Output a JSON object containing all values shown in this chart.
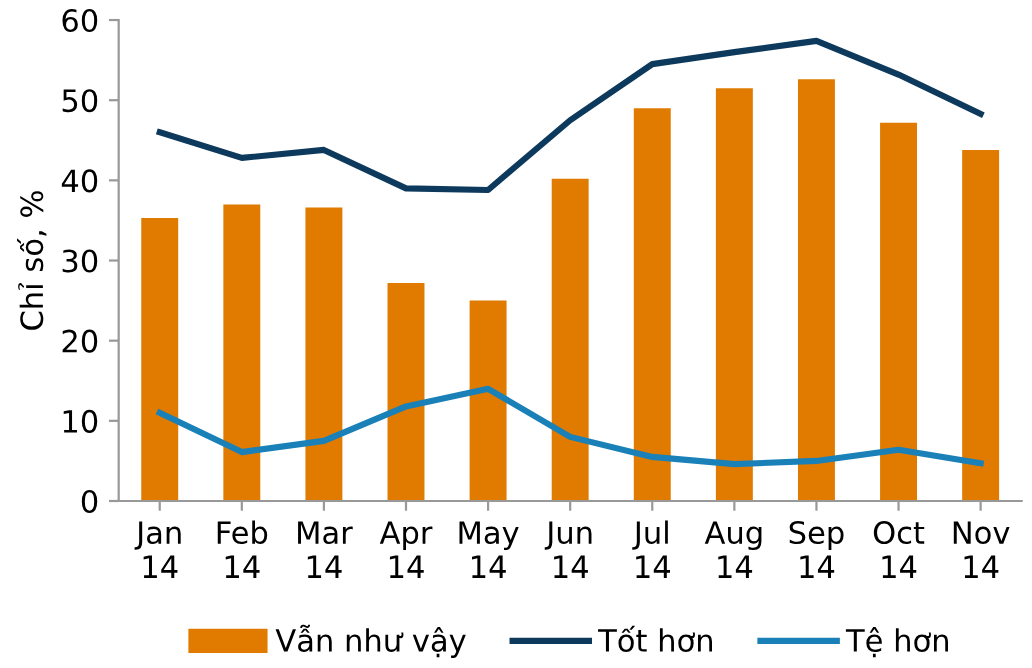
{
  "chart_data": {
    "type": "bar",
    "ylabel": "Chỉ số, %",
    "categories": [
      "Jan\n14",
      "Feb\n14",
      "Mar\n14",
      "Apr\n14",
      "May\n14",
      "Jun\n14",
      "Jul\n14",
      "Aug\n14",
      "Sep\n14",
      "Oct\n14",
      "Nov\n14"
    ],
    "series": [
      {
        "name": "Vẫn như vậy",
        "color": "#e07b00",
        "values": [
          35.3,
          37,
          36.6,
          27.2,
          25,
          40.2,
          49,
          51.5,
          52.6,
          47.2,
          43.8
        ]
      },
      {
        "name": "Tốt hơn",
        "type": "line",
        "color": "#0d3a5c",
        "values": [
          46,
          42.8,
          43.8,
          39,
          38.8,
          47.5,
          54.5,
          56,
          57.4,
          53.2,
          48.3
        ]
      },
      {
        "name": "Tệ hơn",
        "type": "line",
        "color": "#1a80b8",
        "values": [
          11,
          6.1,
          7.5,
          11.8,
          14,
          8,
          5.5,
          4.6,
          5,
          6.4,
          4.7
        ]
      }
    ],
    "ylim": [
      0,
      60
    ],
    "yticks": [
      0,
      10,
      20,
      30,
      40,
      50,
      60
    ],
    "grid": false,
    "legend": "bottom",
    "marker": "none",
    "line_style": "solid"
  }
}
